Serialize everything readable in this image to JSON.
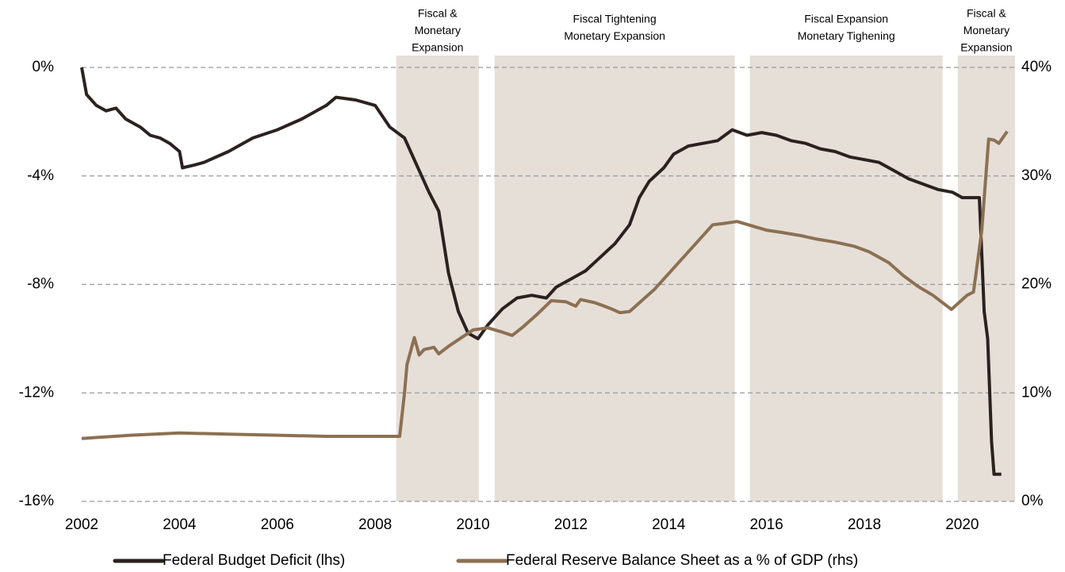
{
  "chart_data": {
    "type": "line",
    "xlim": [
      2002,
      2021.08
    ],
    "xticks": [
      2002,
      2004,
      2006,
      2008,
      2010,
      2012,
      2014,
      2016,
      2018,
      2020
    ],
    "ylim": [
      -16,
      0
    ],
    "yticks": [
      {
        "value": 0,
        "label": "0%"
      },
      {
        "value": -4,
        "label": "-4%"
      },
      {
        "value": -8,
        "label": "-8%"
      },
      {
        "value": -12,
        "label": "-12%"
      },
      {
        "value": -16,
        "label": "-16%"
      }
    ],
    "y2lim": [
      0,
      40
    ],
    "y2ticks": [
      {
        "value": 40,
        "label": "40%"
      },
      {
        "value": 30,
        "label": "30%"
      },
      {
        "value": 20,
        "label": "20%"
      },
      {
        "value": 10,
        "label": "10%"
      },
      {
        "value": 0,
        "label": "0%"
      }
    ],
    "grid": true,
    "legend": "bottom",
    "shaded_periods": [
      {
        "lines": [
          "Fiscal &",
          "Monetary",
          "Expansion"
        ],
        "start": 2008.43,
        "end": 2010.12
      },
      {
        "lines": [
          "Fiscal Tightening",
          "Monetary Expansion"
        ],
        "start": 2010.44,
        "end": 2015.35
      },
      {
        "lines": [
          "Fiscal Expansion",
          "Monetary Tighening"
        ],
        "start": 2015.66,
        "end": 2019.6
      },
      {
        "lines": [
          "Fiscal &",
          "Monetary",
          "Expansion"
        ],
        "start": 2019.91,
        "end": 2021.08
      }
    ],
    "shade_color": "#e5dfd8",
    "series": [
      {
        "name": "Federal Budget Deficit (lhs)",
        "color": "#2b2220",
        "axis": "y",
        "x": [
          2002.0,
          2002.1,
          2002.3,
          2002.5,
          2002.7,
          2002.9,
          2003.2,
          2003.4,
          2003.6,
          2003.8,
          2004.0,
          2004.06,
          2004.3,
          2004.5,
          2005.0,
          2005.5,
          2006.0,
          2006.5,
          2007.0,
          2007.2,
          2007.6,
          2008.0,
          2008.3,
          2008.6,
          2008.9,
          2009.1,
          2009.3,
          2009.5,
          2009.7,
          2009.9,
          2010.1,
          2010.3,
          2010.6,
          2010.9,
          2011.2,
          2011.5,
          2011.7,
          2012.0,
          2012.3,
          2012.6,
          2012.9,
          2013.2,
          2013.4,
          2013.6,
          2013.9,
          2014.1,
          2014.4,
          2014.7,
          2015.0,
          2015.3,
          2015.6,
          2015.9,
          2016.2,
          2016.5,
          2016.8,
          2017.1,
          2017.4,
          2017.7,
          2018.0,
          2018.3,
          2018.6,
          2018.9,
          2019.2,
          2019.5,
          2019.8,
          2020.0,
          2020.35,
          2020.45,
          2020.52,
          2020.6,
          2020.65,
          2020.8
        ],
        "values": [
          0,
          -1.0,
          -1.4,
          -1.6,
          -1.5,
          -1.9,
          -2.2,
          -2.5,
          -2.6,
          -2.8,
          -3.1,
          -3.7,
          -3.6,
          -3.5,
          -3.1,
          -2.6,
          -2.3,
          -1.9,
          -1.4,
          -1.1,
          -1.2,
          -1.4,
          -2.2,
          -2.6,
          -3.8,
          -4.6,
          -5.3,
          -7.6,
          -9.0,
          -9.8,
          -10.0,
          -9.5,
          -8.9,
          -8.5,
          -8.4,
          -8.5,
          -8.1,
          -7.8,
          -7.5,
          -7.0,
          -6.5,
          -5.8,
          -4.8,
          -4.2,
          -3.7,
          -3.2,
          -2.9,
          -2.8,
          -2.7,
          -2.3,
          -2.5,
          -2.4,
          -2.5,
          -2.7,
          -2.8,
          -3.0,
          -3.1,
          -3.3,
          -3.4,
          -3.5,
          -3.8,
          -4.1,
          -4.3,
          -4.5,
          -4.6,
          -4.8,
          -4.8,
          -9.0,
          -10.0,
          -13.8,
          -15.0,
          -15.0
        ]
      },
      {
        "name": "Federal Reserve Balance Sheet as a % of GDP (rhs)",
        "color": "#8c7052",
        "axis": "y2",
        "x": [
          2002.0,
          2003.0,
          2004.0,
          2005.0,
          2006.0,
          2007.0,
          2008.0,
          2008.5,
          2008.6,
          2008.65,
          2008.8,
          2008.9,
          2009.0,
          2009.2,
          2009.3,
          2009.5,
          2009.8,
          2010.0,
          2010.3,
          2010.6,
          2010.8,
          2011.0,
          2011.3,
          2011.6,
          2011.9,
          2012.1,
          2012.2,
          2012.5,
          2012.8,
          2013.0,
          2013.2,
          2013.4,
          2013.7,
          2014.0,
          2014.3,
          2014.6,
          2014.9,
          2015.1,
          2015.4,
          2015.7,
          2016.0,
          2016.3,
          2016.7,
          2017.0,
          2017.4,
          2017.8,
          2018.1,
          2018.5,
          2018.8,
          2019.1,
          2019.4,
          2019.78,
          2020.1,
          2020.23,
          2020.4,
          2020.54,
          2020.65,
          2020.75,
          2020.92
        ],
        "values": [
          5.8,
          6.1,
          6.3,
          6.2,
          6.1,
          6.0,
          6.0,
          6.0,
          10.0,
          12.6,
          15.1,
          13.5,
          14.0,
          14.2,
          13.6,
          14.3,
          15.2,
          15.8,
          16.0,
          15.6,
          15.3,
          16.0,
          17.2,
          18.5,
          18.4,
          18.0,
          18.6,
          18.3,
          17.8,
          17.4,
          17.5,
          18.3,
          19.5,
          21.0,
          22.5,
          24.0,
          25.5,
          25.6,
          25.8,
          25.4,
          25.0,
          24.8,
          24.5,
          24.2,
          23.9,
          23.5,
          23.0,
          22.0,
          20.8,
          19.8,
          19.0,
          17.7,
          19.0,
          19.3,
          25.0,
          33.4,
          33.3,
          33.0,
          34.1
        ]
      }
    ]
  }
}
